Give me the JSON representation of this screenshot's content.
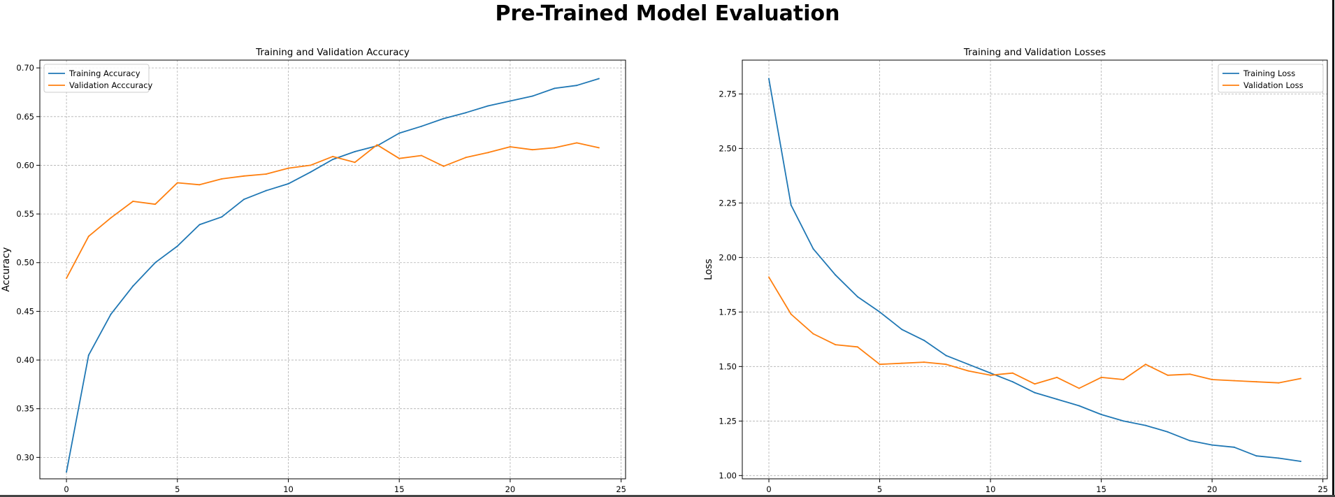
{
  "suptitle": "Pre-Trained Model Evaluation",
  "colors": {
    "series1": "#1f77b4",
    "series2": "#ff7f0e",
    "grid": "#b0b0b0"
  },
  "chart_data": [
    {
      "type": "line",
      "title": "Training and Validation Accuracy",
      "xlabel": "",
      "ylabel": "Accuracy",
      "xlim": [
        -1.2,
        25.2
      ],
      "ylim": [
        0.278,
        0.708
      ],
      "xticks": [
        0,
        5,
        10,
        15,
        20,
        25
      ],
      "xtick_labels": [
        "0",
        "5",
        "10",
        "15",
        "20",
        "25"
      ],
      "yticks": [
        0.3,
        0.35,
        0.4,
        0.45,
        0.5,
        0.55,
        0.6,
        0.65,
        0.7
      ],
      "ytick_labels": [
        "0.30",
        "0.35",
        "0.40",
        "0.45",
        "0.50",
        "0.55",
        "0.60",
        "0.65",
        "0.70"
      ],
      "grid": true,
      "legend_position": "upper-left",
      "x": [
        0,
        1,
        2,
        3,
        4,
        5,
        6,
        7,
        8,
        9,
        10,
        11,
        12,
        13,
        14,
        15,
        16,
        17,
        18,
        19,
        20,
        21,
        22,
        23,
        24
      ],
      "series": [
        {
          "name": "Training Accuracy",
          "color": "#1f77b4",
          "values": [
            0.285,
            0.405,
            0.447,
            0.476,
            0.5,
            0.517,
            0.539,
            0.547,
            0.565,
            0.574,
            0.581,
            0.593,
            0.606,
            0.614,
            0.62,
            0.633,
            0.64,
            0.648,
            0.654,
            0.661,
            0.666,
            0.671,
            0.679,
            0.682,
            0.689
          ]
        },
        {
          "name": "Validation Acccuracy",
          "color": "#ff7f0e",
          "values": [
            0.484,
            0.527,
            0.546,
            0.563,
            0.56,
            0.582,
            0.58,
            0.586,
            0.589,
            0.591,
            0.597,
            0.6,
            0.609,
            0.603,
            0.621,
            0.607,
            0.61,
            0.599,
            0.608,
            0.613,
            0.619,
            0.616,
            0.618,
            0.623,
            0.618
          ]
        }
      ]
    },
    {
      "type": "line",
      "title": "Training and Validation Losses",
      "xlabel": "",
      "ylabel": "Loss",
      "xlim": [
        -1.2,
        25.2
      ],
      "ylim": [
        0.985,
        2.905
      ],
      "xticks": [
        0,
        5,
        10,
        15,
        20,
        25
      ],
      "xtick_labels": [
        "0",
        "5",
        "10",
        "15",
        "20",
        "25"
      ],
      "yticks": [
        1.0,
        1.25,
        1.5,
        1.75,
        2.0,
        2.25,
        2.5,
        2.75
      ],
      "ytick_labels": [
        "1.00",
        "1.25",
        "1.50",
        "1.75",
        "2.00",
        "2.25",
        "2.50",
        "2.75"
      ],
      "grid": true,
      "legend_position": "upper-right",
      "x": [
        0,
        1,
        2,
        3,
        4,
        5,
        6,
        7,
        8,
        9,
        10,
        11,
        12,
        13,
        14,
        15,
        16,
        17,
        18,
        19,
        20,
        21,
        22,
        23,
        24
      ],
      "series": [
        {
          "name": "Training Loss",
          "color": "#1f77b4",
          "values": [
            2.82,
            2.24,
            2.04,
            1.92,
            1.82,
            1.75,
            1.67,
            1.62,
            1.55,
            1.51,
            1.47,
            1.43,
            1.38,
            1.35,
            1.32,
            1.28,
            1.25,
            1.23,
            1.2,
            1.16,
            1.14,
            1.13,
            1.09,
            1.08,
            1.065
          ]
        },
        {
          "name": "Validation Loss",
          "color": "#ff7f0e",
          "values": [
            1.91,
            1.74,
            1.65,
            1.6,
            1.59,
            1.51,
            1.515,
            1.52,
            1.51,
            1.48,
            1.46,
            1.47,
            1.42,
            1.45,
            1.4,
            1.45,
            1.44,
            1.51,
            1.46,
            1.465,
            1.44,
            1.435,
            1.43,
            1.425,
            1.445
          ]
        }
      ]
    }
  ]
}
